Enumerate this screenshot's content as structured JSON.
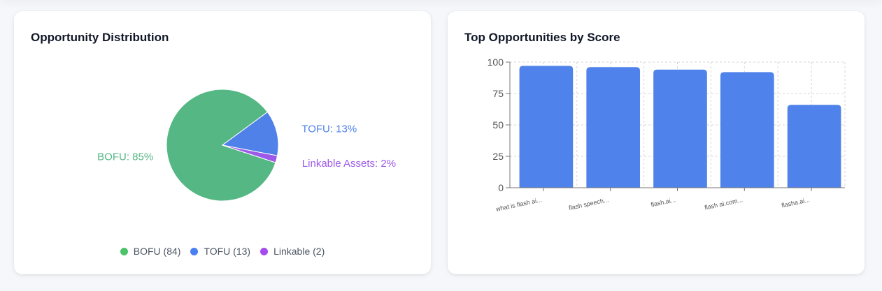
{
  "panels": {
    "distribution": {
      "title": "Opportunity Distribution"
    },
    "top": {
      "title": "Top Opportunities by Score"
    }
  },
  "legend": [
    {
      "label": "BOFU (84)",
      "color": "#4cc36b"
    },
    {
      "label": "TOFU (13)",
      "color": "#4a7ff0"
    },
    {
      "label": "Linkable (2)",
      "color": "#a54cf1"
    }
  ],
  "chart_data": [
    {
      "type": "pie",
      "title": "Opportunity Distribution",
      "slices": [
        {
          "name": "BOFU",
          "value": 84,
          "label": "BOFU: 85%",
          "color": "#55b784"
        },
        {
          "name": "TOFU",
          "value": 13,
          "label": "TOFU: 13%",
          "color": "#5081e8"
        },
        {
          "name": "Linkable Assets",
          "value": 2,
          "label": "Linkable Assets: 2%",
          "color": "#9d5ae8"
        }
      ]
    },
    {
      "type": "bar",
      "title": "Top Opportunities by Score",
      "categories": [
        "what is flash ai...",
        "flash speech...",
        "flash.ai...",
        "flash ai.com...",
        "flasha.ai..."
      ],
      "values": [
        97,
        96,
        94,
        92,
        66
      ],
      "ylim": [
        0,
        100
      ],
      "yticks": [
        0,
        25,
        50,
        75,
        100
      ],
      "grid": true,
      "bar_color": "#4f82ea"
    }
  ]
}
